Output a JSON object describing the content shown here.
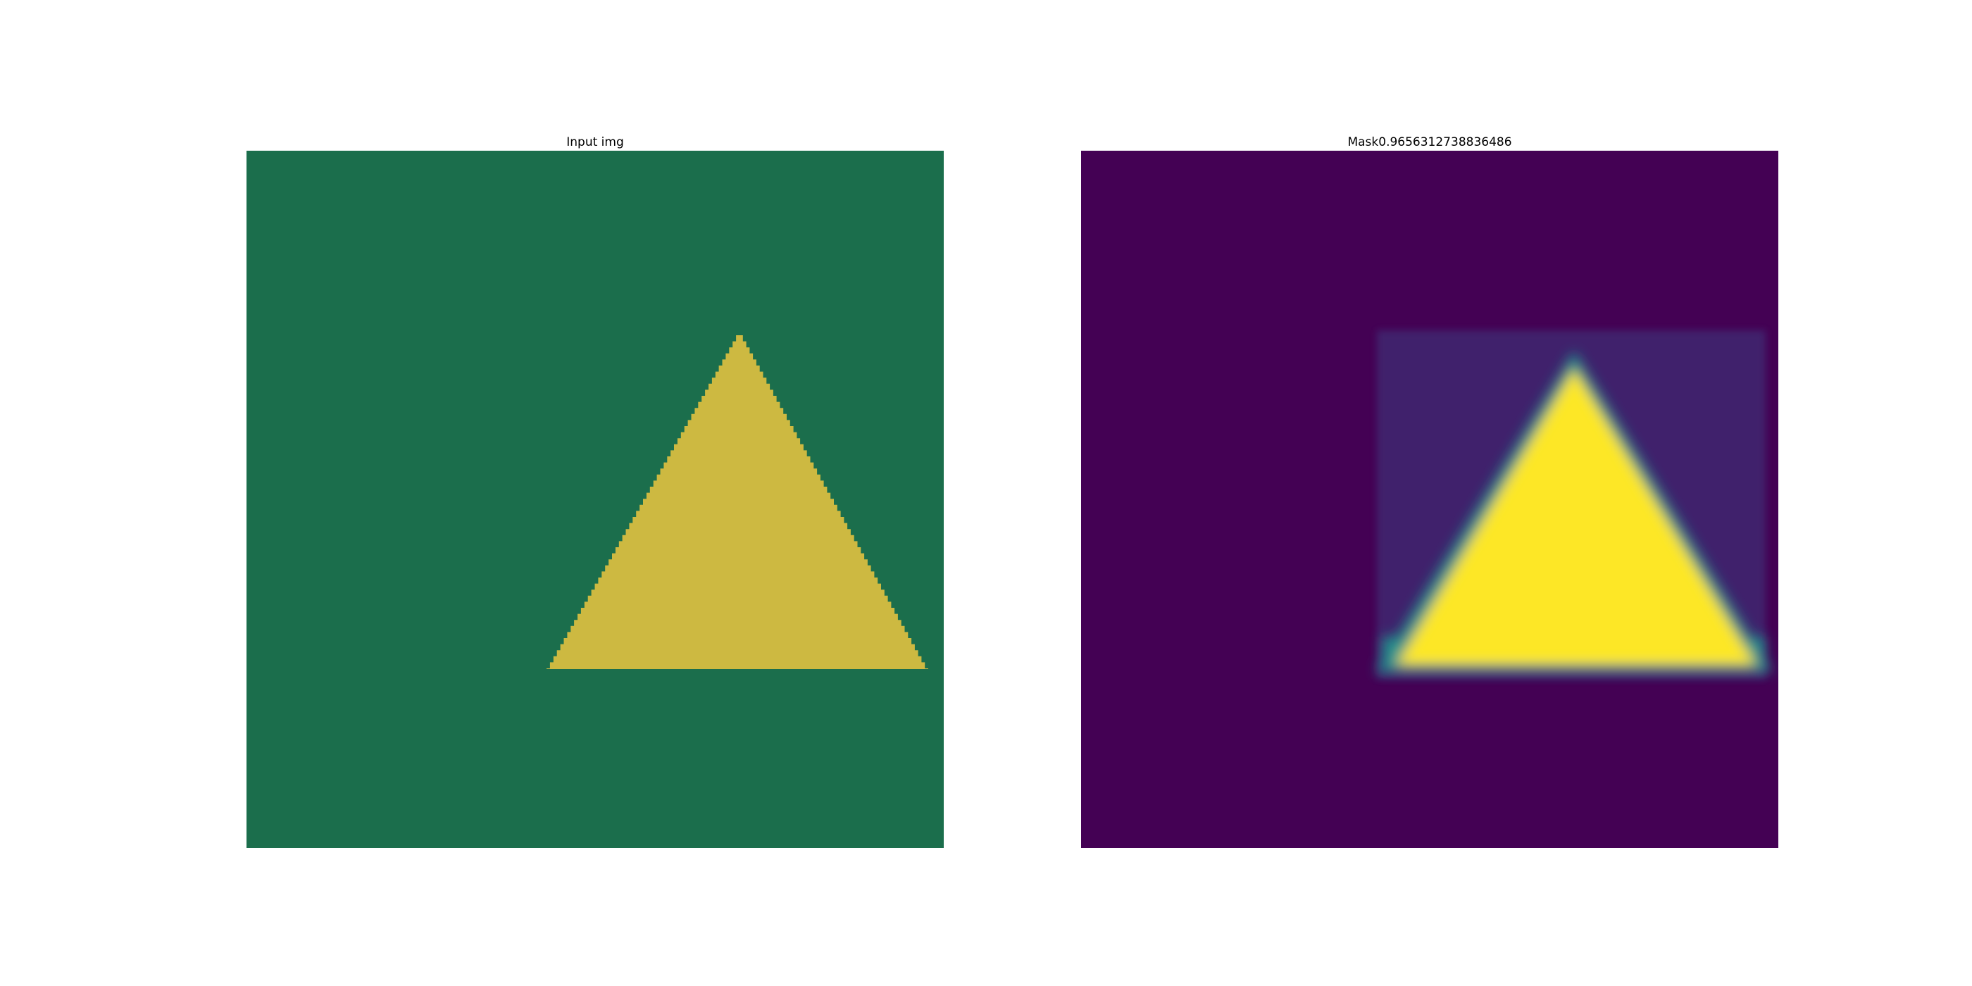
{
  "figure": {
    "panels": [
      {
        "title": "Input img",
        "colors": {
          "background": "#1b6e4c",
          "shape": "#cdb941"
        }
      },
      {
        "title": "Mask0.9656312738836486",
        "colors": {
          "background": "#440154",
          "noise": "#3e4a89",
          "edge": "#21918c",
          "shape": "#fde725"
        }
      }
    ]
  }
}
